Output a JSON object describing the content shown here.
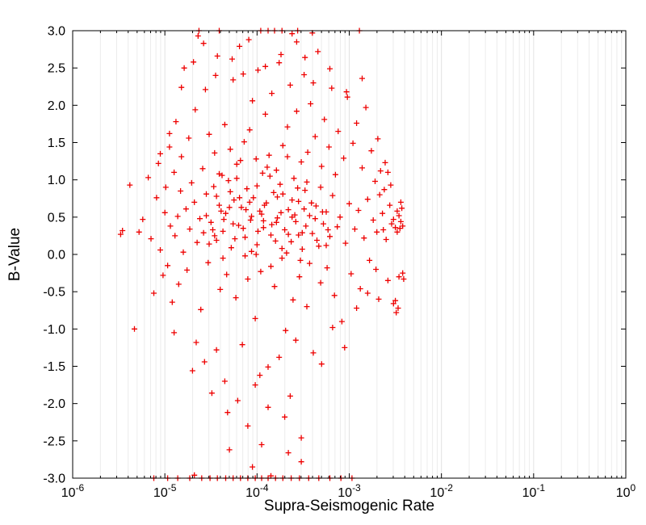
{
  "chart_data": {
    "type": "scatter",
    "title": "",
    "xlabel": "Supra-Seismogenic Rate",
    "ylabel": "B-Value",
    "x_scale": "log10",
    "xlim": [
      1e-06,
      1
    ],
    "x_tick_exponents": [
      -6,
      -5,
      -4,
      -3,
      -2,
      -1,
      0
    ],
    "x_tick_base": "10",
    "ylim": [
      -3,
      3
    ],
    "y_ticks": [
      3.0,
      2.5,
      2.0,
      1.5,
      1.0,
      0.5,
      0.0,
      -0.5,
      -1.0,
      -1.5,
      -2.0,
      -2.5,
      -3.0
    ],
    "grid": {
      "show": true,
      "orientation": "vertical",
      "minor_color": "#ececec",
      "major_color": "#e2e2e2"
    },
    "marker": {
      "symbol": "plus",
      "color": "#ee0000",
      "size": 7,
      "stroke_width": 1.3
    },
    "legend": null,
    "points_log10x_y": [
      [
        -5.48,
        0.27
      ],
      [
        -5.46,
        0.32
      ],
      [
        -5.38,
        0.93
      ],
      [
        -5.33,
        -1.0
      ],
      [
        -5.28,
        0.3
      ],
      [
        -5.24,
        0.47
      ],
      [
        -5.18,
        1.03
      ],
      [
        -5.15,
        0.21
      ],
      [
        -5.12,
        -0.52
      ],
      [
        -5.09,
        0.76
      ],
      [
        -5.07,
        1.22
      ],
      [
        -5.05,
        0.06
      ],
      [
        -5.02,
        -0.28
      ],
      [
        -5.0,
        0.56
      ],
      [
        -4.99,
        0.9
      ],
      [
        -4.97,
        -0.15
      ],
      [
        -4.95,
        1.44
      ],
      [
        -4.94,
        0.38
      ],
      [
        -4.92,
        -0.64
      ],
      [
        -4.9,
        1.1
      ],
      [
        -4.89,
        0.25
      ],
      [
        -4.88,
        1.78
      ],
      [
        -4.86,
        0.51
      ],
      [
        -4.85,
        -0.4
      ],
      [
        -4.83,
        0.85
      ],
      [
        -4.82,
        1.31
      ],
      [
        -4.8,
        0.03
      ],
      [
        -4.79,
        2.5
      ],
      [
        -4.77,
        0.61
      ],
      [
        -4.76,
        -0.21
      ],
      [
        -4.74,
        1.56
      ],
      [
        -4.73,
        0.34
      ],
      [
        -4.71,
        0.96
      ],
      [
        -4.7,
        -1.56
      ],
      [
        -4.68,
        0.7
      ],
      [
        -4.67,
        1.94
      ],
      [
        -4.65,
        0.16
      ],
      [
        -4.64,
        2.93
      ],
      [
        -4.62,
        0.48
      ],
      [
        -4.61,
        -0.74
      ],
      [
        -4.59,
        1.15
      ],
      [
        -4.58,
        0.29
      ],
      [
        -4.56,
        2.21
      ],
      [
        -4.55,
        0.81
      ],
      [
        -4.53,
        -0.11
      ],
      [
        -4.52,
        1.61
      ],
      [
        -4.5,
        0.43
      ],
      [
        -4.49,
        -1.86
      ],
      [
        -4.47,
        0.91
      ],
      [
        -4.46,
        1.36
      ],
      [
        -4.44,
        0.19
      ],
      [
        -4.43,
        2.66
      ],
      [
        -4.41,
        0.66
      ],
      [
        -4.4,
        -0.47
      ],
      [
        -4.38,
        1.06
      ],
      [
        -4.37,
        0.31
      ],
      [
        -4.35,
        1.74
      ],
      [
        -4.34,
        0.55
      ],
      [
        -4.32,
        -2.12
      ],
      [
        -4.31,
        0.99
      ],
      [
        -4.29,
        1.41
      ],
      [
        -4.28,
        0.09
      ],
      [
        -4.26,
        2.34
      ],
      [
        -4.25,
        0.73
      ],
      [
        -4.23,
        -0.58
      ],
      [
        -4.22,
        1.21
      ],
      [
        -4.2,
        0.39
      ],
      [
        -4.19,
        2.79
      ],
      [
        -4.17,
        0.63
      ],
      [
        -4.16,
        -1.21
      ],
      [
        -4.14,
        1.51
      ],
      [
        -4.13,
        0.23
      ],
      [
        -4.11,
        0.88
      ],
      [
        -4.1,
        -0.33
      ],
      [
        -4.08,
        1.67
      ],
      [
        -4.07,
        0.46
      ],
      [
        -4.05,
        2.06
      ],
      [
        -4.04,
        0.76
      ],
      [
        -4.02,
        -0.86
      ],
      [
        -4.01,
        1.28
      ],
      [
        -4.0,
        0.13
      ],
      [
        -3.99,
        2.47
      ],
      [
        -3.97,
        0.58
      ],
      [
        -3.96,
        -0.23
      ],
      [
        -3.94,
        1.09
      ],
      [
        -3.93,
        0.36
      ],
      [
        -3.91,
        1.88
      ],
      [
        -3.9,
        0.69
      ],
      [
        -3.88,
        -1.51
      ],
      [
        -3.87,
        1.33
      ],
      [
        -3.85,
        0.26
      ],
      [
        -3.84,
        2.16
      ],
      [
        -3.82,
        0.83
      ],
      [
        -3.81,
        -0.43
      ],
      [
        -3.79,
        1.13
      ],
      [
        -3.78,
        0.49
      ],
      [
        -3.76,
        2.57
      ],
      [
        -3.75,
        0.94
      ],
      [
        -3.73,
        -0.05
      ],
      [
        -3.72,
        1.46
      ],
      [
        -3.7,
        0.33
      ],
      [
        -3.69,
        -1.02
      ],
      [
        -3.67,
        1.71
      ],
      [
        -3.66,
        0.6
      ],
      [
        -3.64,
        2.27
      ],
      [
        -3.63,
        0.17
      ],
      [
        -3.61,
        -0.61
      ],
      [
        -3.6,
        1.02
      ],
      [
        -3.58,
        0.44
      ],
      [
        -3.57,
        1.92
      ],
      [
        -3.55,
        0.71
      ],
      [
        -3.54,
        -0.3
      ],
      [
        -3.52,
        1.24
      ],
      [
        -3.51,
        0.07
      ],
      [
        -3.49,
        2.41
      ],
      [
        -3.48,
        0.86
      ],
      [
        -3.46,
        -0.7
      ],
      [
        -3.45,
        1.37
      ],
      [
        -3.43,
        0.52
      ],
      [
        -3.42,
        2.02
      ],
      [
        -3.4,
        0.28
      ],
      [
        -3.39,
        -1.32
      ],
      [
        -3.37,
        1.58
      ],
      [
        -3.36,
        0.65
      ],
      [
        -3.34,
        2.72
      ],
      [
        -3.33,
        0.11
      ],
      [
        -3.31,
        -0.38
      ],
      [
        -3.3,
        1.18
      ],
      [
        -3.28,
        0.41
      ],
      [
        -3.27,
        1.81
      ],
      [
        -3.25,
        0.57
      ],
      [
        -3.24,
        -0.18
      ],
      [
        -3.22,
        1.44
      ],
      [
        -3.21,
        0.24
      ],
      [
        -3.19,
        2.23
      ],
      [
        -3.18,
        0.79
      ],
      [
        -3.16,
        -0.55
      ],
      [
        -3.15,
        1.07
      ],
      [
        -3.13,
        0.37
      ],
      [
        -3.12,
        1.65
      ],
      [
        -3.1,
        0.5
      ],
      [
        -3.08,
        -0.9
      ],
      [
        -3.06,
        1.29
      ],
      [
        -3.04,
        0.15
      ],
      [
        -3.02,
        2.11
      ],
      [
        -3.0,
        0.68
      ],
      [
        -2.98,
        -0.26
      ],
      [
        -2.96,
        1.49
      ],
      [
        -2.94,
        0.34
      ],
      [
        -2.92,
        1.76
      ],
      [
        -2.9,
        0.59
      ],
      [
        -2.88,
        -0.46
      ],
      [
        -2.86,
        1.16
      ],
      [
        -2.84,
        0.22
      ],
      [
        -2.82,
        1.97
      ],
      [
        -2.8,
        0.74
      ],
      [
        -2.78,
        -0.08
      ],
      [
        -2.76,
        1.39
      ],
      [
        -2.74,
        0.46
      ],
      [
        -2.72,
        0.98
      ],
      [
        -2.7,
        0.3
      ],
      [
        -2.68,
        -0.6
      ],
      [
        -2.66,
        1.12
      ],
      [
        -2.64,
        0.55
      ],
      [
        -2.62,
        0.87
      ],
      [
        -2.6,
        0.2
      ],
      [
        -2.58,
        -0.35
      ],
      [
        -2.56,
        0.66
      ],
      [
        -2.54,
        0.41
      ],
      [
        -2.52,
        -0.66
      ],
      [
        -2.5,
        0.36
      ],
      [
        -2.48,
        0.58
      ],
      [
        -2.46,
        -0.3
      ],
      [
        -2.44,
        0.44
      ],
      [
        -2.42,
        -0.25
      ],
      [
        -2.45,
        0.35
      ],
      [
        -2.43,
        0.62
      ],
      [
        -2.47,
        -0.72
      ],
      [
        -2.49,
        -0.78
      ],
      [
        -2.41,
        -0.33
      ],
      [
        -4.55,
        0.52
      ],
      [
        -4.48,
        0.33
      ],
      [
        -4.41,
        1.08
      ],
      [
        -4.36,
        0.47
      ],
      [
        -4.29,
        0.84
      ],
      [
        -4.24,
        0.21
      ],
      [
        -4.18,
        1.26
      ],
      [
        -4.12,
        0.6
      ],
      [
        -4.06,
        0.04
      ],
      [
        -4.0,
        0.92
      ],
      [
        -3.95,
        0.54
      ],
      [
        -3.89,
        1.17
      ],
      [
        -3.84,
        0.4
      ],
      [
        -3.78,
        0.77
      ],
      [
        -3.73,
        0.08
      ],
      [
        -3.67,
        1.31
      ],
      [
        -3.62,
        0.5
      ],
      [
        -3.56,
        0.89
      ],
      [
        -3.51,
        0.29
      ],
      [
        -3.46,
        0.97
      ],
      [
        -4.52,
        0.14
      ],
      [
        -4.44,
        0.78
      ],
      [
        -4.37,
        -0.05
      ],
      [
        -4.3,
        0.63
      ],
      [
        -4.22,
        1.02
      ],
      [
        -4.15,
        0.35
      ],
      [
        -4.08,
        0.7
      ],
      [
        -4.01,
        0.0
      ],
      [
        -3.93,
        0.45
      ],
      [
        -3.86,
        1.05
      ],
      [
        -3.8,
        0.18
      ],
      [
        -3.74,
        0.56
      ],
      [
        -3.68,
        0.02
      ],
      [
        -3.62,
        0.73
      ],
      [
        -3.55,
        0.26
      ],
      [
        -3.49,
        0.61
      ],
      [
        -3.43,
        -0.12
      ],
      [
        -3.37,
        0.48
      ],
      [
        -3.31,
        0.9
      ],
      [
        -3.25,
        0.12
      ],
      [
        -4.46,
        0.25
      ],
      [
        -4.39,
        0.58
      ],
      [
        -4.33,
        -0.27
      ],
      [
        -4.26,
        0.41
      ],
      [
        -4.19,
        0.76
      ],
      [
        -4.13,
        -0.02
      ],
      [
        -4.06,
        0.51
      ],
      [
        -3.99,
        0.31
      ],
      [
        -3.92,
        0.66
      ],
      [
        -3.85,
        -0.16
      ],
      [
        -3.79,
        0.43
      ],
      [
        -3.72,
        0.81
      ],
      [
        -3.66,
        0.27
      ],
      [
        -3.59,
        0.53
      ],
      [
        -3.53,
        -0.08
      ],
      [
        -3.47,
        0.38
      ],
      [
        -3.41,
        0.69
      ],
      [
        -3.35,
        0.19
      ],
      [
        -3.29,
        0.57
      ],
      [
        -3.23,
        0.33
      ],
      [
        -4.66,
        -1.18
      ],
      [
        -4.57,
        -1.44
      ],
      [
        -4.35,
        -1.7
      ],
      [
        -4.21,
        -1.96
      ],
      [
        -4.1,
        -2.3
      ],
      [
        -3.97,
        -1.62
      ],
      [
        -3.88,
        -2.05
      ],
      [
        -3.76,
        -1.38
      ],
      [
        -3.64,
        -1.9
      ],
      [
        -3.52,
        -2.46
      ],
      [
        -4.9,
        -1.05
      ],
      [
        -4.44,
        -1.28
      ],
      [
        -4.02,
        -1.75
      ],
      [
        -3.7,
        -2.18
      ],
      [
        -3.58,
        -1.15
      ],
      [
        -3.3,
        -1.47
      ],
      [
        -3.18,
        -0.98
      ],
      [
        -3.05,
        -1.25
      ],
      [
        -2.92,
        -0.72
      ],
      [
        -2.8,
        -0.52
      ],
      [
        -4.82,
        2.24
      ],
      [
        -4.69,
        2.58
      ],
      [
        -4.58,
        2.83
      ],
      [
        -4.45,
        2.4
      ],
      [
        -4.27,
        2.62
      ],
      [
        -4.09,
        2.88
      ],
      [
        -3.91,
        2.52
      ],
      [
        -3.74,
        2.68
      ],
      [
        -3.57,
        2.85
      ],
      [
        -3.39,
        2.3
      ],
      [
        -3.21,
        2.49
      ],
      [
        -3.03,
        2.18
      ],
      [
        -2.86,
        2.36
      ],
      [
        -2.69,
        1.55
      ],
      [
        -2.61,
        1.23
      ],
      [
        -2.55,
        0.93
      ],
      [
        -4.95,
        1.62
      ],
      [
        -5.05,
        1.35
      ],
      [
        -4.15,
        2.42
      ],
      [
        -3.48,
        2.64
      ],
      [
        -4.63,
        3.0
      ],
      [
        -4.41,
        3.0
      ],
      [
        -3.96,
        3.0
      ],
      [
        -3.88,
        3.0
      ],
      [
        -3.81,
        3.0
      ],
      [
        -3.73,
        3.0
      ],
      [
        -3.56,
        3.0
      ],
      [
        -2.89,
        3.0
      ],
      [
        -3.62,
        2.96
      ],
      [
        -3.4,
        2.97
      ],
      [
        -5.12,
        -3.0
      ],
      [
        -4.97,
        -3.0
      ],
      [
        -4.86,
        -3.0
      ],
      [
        -4.73,
        -3.0
      ],
      [
        -4.6,
        -3.0
      ],
      [
        -4.51,
        -3.0
      ],
      [
        -4.43,
        -3.0
      ],
      [
        -4.34,
        -3.0
      ],
      [
        -4.26,
        -3.0
      ],
      [
        -4.18,
        -3.0
      ],
      [
        -4.1,
        -3.0
      ],
      [
        -4.02,
        -3.0
      ],
      [
        -3.95,
        -3.0
      ],
      [
        -3.88,
        -3.0
      ],
      [
        -3.8,
        -3.0
      ],
      [
        -3.72,
        -3.0
      ],
      [
        -3.63,
        -3.0
      ],
      [
        -3.54,
        -3.0
      ],
      [
        -3.44,
        -3.0
      ],
      [
        -3.33,
        -3.0
      ],
      [
        -3.21,
        -3.0
      ],
      [
        -3.09,
        -3.0
      ],
      [
        -2.97,
        -3.0
      ],
      [
        -4.68,
        -2.96
      ],
      [
        -3.85,
        -2.97
      ],
      [
        -4.3,
        -2.62
      ],
      [
        -3.52,
        -2.78
      ],
      [
        -3.95,
        -2.55
      ],
      [
        -3.66,
        -2.66
      ],
      [
        -4.05,
        -2.85
      ],
      [
        -2.44,
        0.7
      ],
      [
        -2.42,
        0.38
      ],
      [
        -2.46,
        0.52
      ],
      [
        -2.48,
        0.3
      ],
      [
        -2.5,
        -0.62
      ],
      [
        -2.52,
        0.47
      ],
      [
        -2.58,
        1.1
      ],
      [
        -2.63,
        0.33
      ],
      [
        -2.67,
        0.8
      ],
      [
        -2.71,
        -0.2
      ]
    ]
  }
}
